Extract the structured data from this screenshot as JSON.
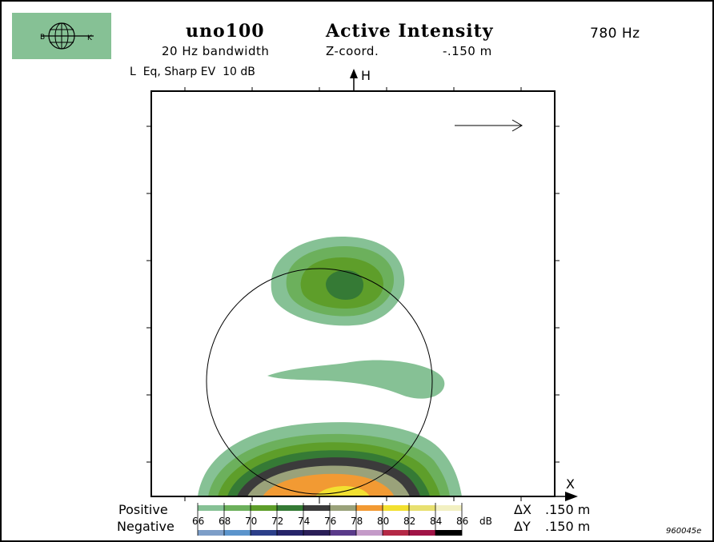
{
  "header": {
    "brand_left": "B",
    "brand_right": "K",
    "measurement_name": "uno100",
    "bandwidth": "20 Hz bandwidth",
    "quantity": "Active Intensity",
    "coord_label": "Z-coord.",
    "coord_value": "-.150 m",
    "frequency": "780 Hz",
    "level_note": "L  Eq, Sharp EV  10 dB",
    "v_axis_label": "H",
    "h_axis_label": "X"
  },
  "legend": {
    "positive_label": "Positive",
    "negative_label": "Negative",
    "unit": "dB",
    "levels": [
      "66",
      "68",
      "70",
      "72",
      "74",
      "76",
      "78",
      "80",
      "82",
      "84",
      "86"
    ],
    "positive_colors": [
      "#86c195",
      "#6cb05c",
      "#5e9e2a",
      "#357a35",
      "#3b3b3b",
      "#9aa27a",
      "#f29a33",
      "#f2e030",
      "#e8e070",
      "#f2f0c2"
    ],
    "negative_colors": [
      "#7d9ec8",
      "#5b94cc",
      "#2c3f8a",
      "#26246a",
      "#2a1e58",
      "#5a3a8a",
      "#c49ac8",
      "#b42846",
      "#a01446",
      "#000000"
    ]
  },
  "spacing": {
    "dx_label": "ΔX",
    "dx_value": ".150 m",
    "dy_label": "ΔY",
    "dy_value": ".150 m"
  },
  "figure_id": "960045e",
  "chart_data": {
    "type": "heatmap",
    "title": "Active Intensity",
    "xlabel": "X",
    "ylabel": "H",
    "unit": "dB",
    "colorbar_ticks": [
      66,
      68,
      70,
      72,
      74,
      76,
      78,
      80,
      82,
      84,
      86
    ],
    "regions": [
      {
        "feature": "upper lobe",
        "levels_db": [
          66,
          68,
          70,
          74
        ],
        "peak_db_range": [
          74,
          76
        ]
      },
      {
        "feature": "middle elongated lobe",
        "levels_db": [
          66
        ],
        "peak_db_range": [
          66,
          68
        ]
      },
      {
        "feature": "bottom lobe",
        "levels_db": [
          66,
          68,
          70,
          72,
          74,
          76,
          78,
          80
        ],
        "peak_db_range": [
          80,
          82
        ]
      }
    ],
    "intensity_direction": "right",
    "grid": false
  }
}
